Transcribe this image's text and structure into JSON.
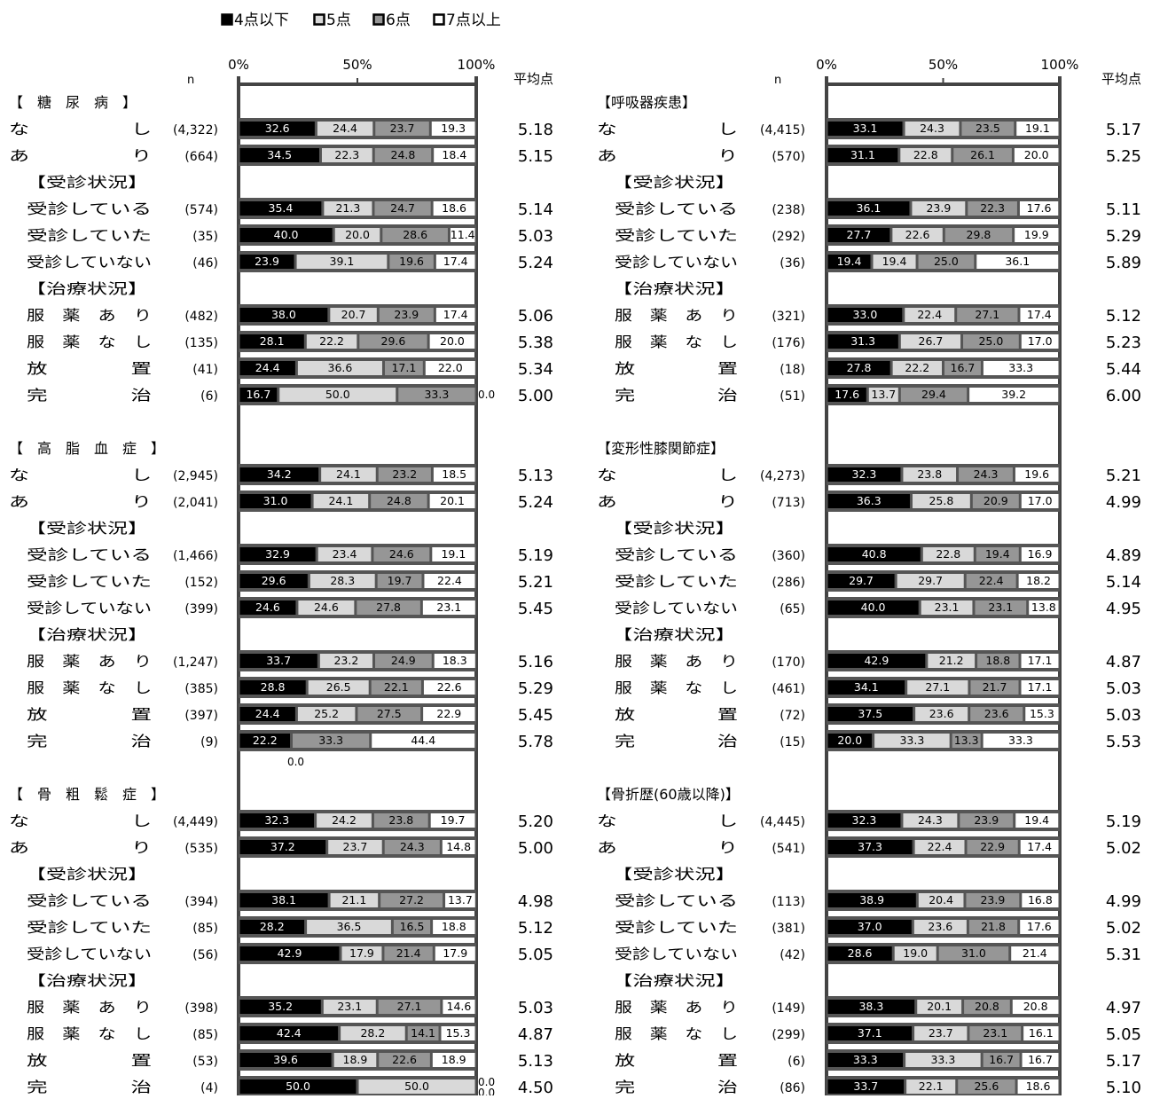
{
  "legend": [
    {
      "label": "4点以下",
      "color": "#000000"
    },
    {
      "label": "5点",
      "color": "#d9d9d9"
    },
    {
      "label": "6点",
      "color": "#969696"
    },
    {
      "label": "7点以上",
      "color": "#ffffff"
    }
  ],
  "axis": {
    "ticks": [
      "0%",
      "50%",
      "100%"
    ],
    "n_label": "n",
    "avg_label": "平均点"
  },
  "chart_data": [
    {
      "type": "bar",
      "stacked": true,
      "panel": "left",
      "series_names": [
        "4点以下",
        "5点",
        "6点",
        "7点以上"
      ],
      "groups": [
        {
          "title": "【　糖　尿　病　】",
          "rows": [
            {
              "label": "な　　　　　し",
              "n": "(4,322)",
              "values": [
                32.6,
                24.4,
                23.7,
                19.3
              ],
              "avg": "5.18"
            },
            {
              "label": "あ　　　　　り",
              "n": "(664)",
              "values": [
                34.5,
                22.3,
                24.8,
                18.4
              ],
              "avg": "5.15"
            },
            {
              "header": "【受診状況】"
            },
            {
              "label": "受診している",
              "n": "(574)",
              "values": [
                35.4,
                21.3,
                24.7,
                18.6
              ],
              "avg": "5.14"
            },
            {
              "label": "受診していた",
              "n": "(35)",
              "values": [
                40.0,
                20.0,
                28.6,
                11.4
              ],
              "avg": "5.03"
            },
            {
              "label": "受診していない",
              "n": "(46)",
              "values": [
                23.9,
                39.1,
                19.6,
                17.4
              ],
              "avg": "5.24"
            },
            {
              "header": "【治療状況】"
            },
            {
              "label": "服　薬　あ　り",
              "n": "(482)",
              "values": [
                38.0,
                20.7,
                23.9,
                17.4
              ],
              "avg": "5.06"
            },
            {
              "label": "服　薬　な　し",
              "n": "(135)",
              "values": [
                28.1,
                22.2,
                29.6,
                20.0
              ],
              "avg": "5.38"
            },
            {
              "label": "放　　　　置",
              "n": "(41)",
              "values": [
                24.4,
                36.6,
                17.1,
                22.0
              ],
              "avg": "5.34"
            },
            {
              "label": "完　　　　治",
              "n": "(6)",
              "values": [
                16.7,
                50.0,
                33.3,
                0.0
              ],
              "avg": "5.00"
            }
          ]
        },
        {
          "title": "【　高　脂　血　症　】",
          "rows": [
            {
              "label": "な　　　　　し",
              "n": "(2,945)",
              "values": [
                34.2,
                24.1,
                23.2,
                18.5
              ],
              "avg": "5.13"
            },
            {
              "label": "あ　　　　　り",
              "n": "(2,041)",
              "values": [
                31.0,
                24.1,
                24.8,
                20.1
              ],
              "avg": "5.24"
            },
            {
              "header": "【受診状況】"
            },
            {
              "label": "受診している",
              "n": "(1,466)",
              "values": [
                32.9,
                23.4,
                24.6,
                19.1
              ],
              "avg": "5.19"
            },
            {
              "label": "受診していた",
              "n": "(152)",
              "values": [
                29.6,
                28.3,
                19.7,
                22.4
              ],
              "avg": "5.21"
            },
            {
              "label": "受診していない",
              "n": "(399)",
              "values": [
                24.6,
                24.6,
                27.8,
                23.1
              ],
              "avg": "5.45"
            },
            {
              "header": "【治療状況】"
            },
            {
              "label": "服　薬　あ　り",
              "n": "(1,247)",
              "values": [
                33.7,
                23.2,
                24.9,
                18.3
              ],
              "avg": "5.16"
            },
            {
              "label": "服　薬　な　し",
              "n": "(385)",
              "values": [
                28.8,
                26.5,
                22.1,
                22.6
              ],
              "avg": "5.29"
            },
            {
              "label": "放　　　　置",
              "n": "(397)",
              "values": [
                24.4,
                25.2,
                27.5,
                22.9
              ],
              "avg": "5.45"
            },
            {
              "label": "完　　　　治",
              "n": "(9)",
              "values": [
                22.2,
                0.0,
                33.3,
                44.4
              ],
              "avg": "5.78"
            }
          ]
        },
        {
          "title": "【　骨　粗　鬆　症　】",
          "rows": [
            {
              "label": "な　　　　　し",
              "n": "(4,449)",
              "values": [
                32.3,
                24.2,
                23.8,
                19.7
              ],
              "avg": "5.20"
            },
            {
              "label": "あ　　　　　り",
              "n": "(535)",
              "values": [
                37.2,
                23.7,
                24.3,
                14.8
              ],
              "avg": "5.00"
            },
            {
              "header": "【受診状況】"
            },
            {
              "label": "受診している",
              "n": "(394)",
              "values": [
                38.1,
                21.1,
                27.2,
                13.7
              ],
              "avg": "4.98"
            },
            {
              "label": "受診していた",
              "n": "(85)",
              "values": [
                28.2,
                36.5,
                16.5,
                18.8
              ],
              "avg": "5.12"
            },
            {
              "label": "受診していない",
              "n": "(56)",
              "values": [
                42.9,
                17.9,
                21.4,
                17.9
              ],
              "avg": "5.05"
            },
            {
              "header": "【治療状況】"
            },
            {
              "label": "服　薬　あ　り",
              "n": "(398)",
              "values": [
                35.2,
                23.1,
                27.1,
                14.6
              ],
              "avg": "5.03"
            },
            {
              "label": "服　薬　な　し",
              "n": "(85)",
              "values": [
                42.4,
                28.2,
                14.1,
                15.3
              ],
              "avg": "4.87"
            },
            {
              "label": "放　　　　置",
              "n": "(53)",
              "values": [
                39.6,
                18.9,
                22.6,
                18.9
              ],
              "avg": "5.13"
            },
            {
              "label": "完　　　　治",
              "n": "(4)",
              "values": [
                50.0,
                50.0,
                0.0,
                0.0
              ],
              "avg": "4.50"
            }
          ]
        }
      ]
    },
    {
      "type": "bar",
      "stacked": true,
      "panel": "right",
      "series_names": [
        "4点以下",
        "5点",
        "6点",
        "7点以上"
      ],
      "groups": [
        {
          "title": "【呼吸器疾患】",
          "rows": [
            {
              "label": "な　　　　　し",
              "n": "(4,415)",
              "values": [
                33.1,
                24.3,
                23.5,
                19.1
              ],
              "avg": "5.17"
            },
            {
              "label": "あ　　　　　り",
              "n": "(570)",
              "values": [
                31.1,
                22.8,
                26.1,
                20.0
              ],
              "avg": "5.25"
            },
            {
              "header": "【受診状況】"
            },
            {
              "label": "受診している",
              "n": "(238)",
              "values": [
                36.1,
                23.9,
                22.3,
                17.6
              ],
              "avg": "5.11"
            },
            {
              "label": "受診していた",
              "n": "(292)",
              "values": [
                27.7,
                22.6,
                29.8,
                19.9
              ],
              "avg": "5.29"
            },
            {
              "label": "受診していない",
              "n": "(36)",
              "values": [
                19.4,
                19.4,
                25.0,
                36.1
              ],
              "avg": "5.89"
            },
            {
              "header": "【治療状況】"
            },
            {
              "label": "服　薬　あ　り",
              "n": "(321)",
              "values": [
                33.0,
                22.4,
                27.1,
                17.4
              ],
              "avg": "5.12"
            },
            {
              "label": "服　薬　な　し",
              "n": "(176)",
              "values": [
                31.3,
                26.7,
                25.0,
                17.0
              ],
              "avg": "5.23"
            },
            {
              "label": "放　　　　置",
              "n": "(18)",
              "values": [
                27.8,
                22.2,
                16.7,
                33.3
              ],
              "avg": "5.44"
            },
            {
              "label": "完　　　　治",
              "n": "(51)",
              "values": [
                17.6,
                13.7,
                29.4,
                39.2
              ],
              "avg": "6.00"
            }
          ]
        },
        {
          "title": "【変形性膝関節症】",
          "rows": [
            {
              "label": "な　　　　　し",
              "n": "(4,273)",
              "values": [
                32.3,
                23.8,
                24.3,
                19.6
              ],
              "avg": "5.21"
            },
            {
              "label": "あ　　　　　り",
              "n": "(713)",
              "values": [
                36.3,
                25.8,
                20.9,
                17.0
              ],
              "avg": "4.99"
            },
            {
              "header": "【受診状況】"
            },
            {
              "label": "受診している",
              "n": "(360)",
              "values": [
                40.8,
                22.8,
                19.4,
                16.9
              ],
              "avg": "4.89"
            },
            {
              "label": "受診していた",
              "n": "(286)",
              "values": [
                29.7,
                29.7,
                22.4,
                18.2
              ],
              "avg": "5.14"
            },
            {
              "label": "受診していない",
              "n": "(65)",
              "values": [
                40.0,
                23.1,
                23.1,
                13.8
              ],
              "avg": "4.95"
            },
            {
              "header": "【治療状況】"
            },
            {
              "label": "服　薬　あ　り",
              "n": "(170)",
              "values": [
                42.9,
                21.2,
                18.8,
                17.1
              ],
              "avg": "4.87"
            },
            {
              "label": "服　薬　な　し",
              "n": "(461)",
              "values": [
                34.1,
                27.1,
                21.7,
                17.1
              ],
              "avg": "5.03"
            },
            {
              "label": "放　　　　置",
              "n": "(72)",
              "values": [
                37.5,
                23.6,
                23.6,
                15.3
              ],
              "avg": "5.03"
            },
            {
              "label": "完　　　　治",
              "n": "(15)",
              "values": [
                20.0,
                33.3,
                13.3,
                33.3
              ],
              "avg": "5.53"
            }
          ]
        },
        {
          "title": "【骨折歴(60歳以降)】",
          "rows": [
            {
              "label": "な　　　　　し",
              "n": "(4,445)",
              "values": [
                32.3,
                24.3,
                23.9,
                19.4
              ],
              "avg": "5.19"
            },
            {
              "label": "あ　　　　　り",
              "n": "(541)",
              "values": [
                37.3,
                22.4,
                22.9,
                17.4
              ],
              "avg": "5.02"
            },
            {
              "header": "【受診状況】"
            },
            {
              "label": "受診している",
              "n": "(113)",
              "values": [
                38.9,
                20.4,
                23.9,
                16.8
              ],
              "avg": "4.99"
            },
            {
              "label": "受診していた",
              "n": "(381)",
              "values": [
                37.0,
                23.6,
                21.8,
                17.6
              ],
              "avg": "5.02"
            },
            {
              "label": "受診していない",
              "n": "(42)",
              "values": [
                28.6,
                19.0,
                31.0,
                21.4
              ],
              "avg": "5.31"
            },
            {
              "header": "【治療状況】"
            },
            {
              "label": "服　薬　あ　り",
              "n": "(149)",
              "values": [
                38.3,
                20.1,
                20.8,
                20.8
              ],
              "avg": "4.97"
            },
            {
              "label": "服　薬　な　し",
              "n": "(299)",
              "values": [
                37.1,
                23.7,
                23.1,
                16.1
              ],
              "avg": "5.05"
            },
            {
              "label": "放　　　　置",
              "n": "(6)",
              "values": [
                33.3,
                33.3,
                16.7,
                16.7
              ],
              "avg": "5.17"
            },
            {
              "label": "完　　　　治",
              "n": "(86)",
              "values": [
                33.7,
                22.1,
                25.6,
                18.6
              ],
              "avg": "5.10"
            }
          ]
        }
      ]
    }
  ]
}
